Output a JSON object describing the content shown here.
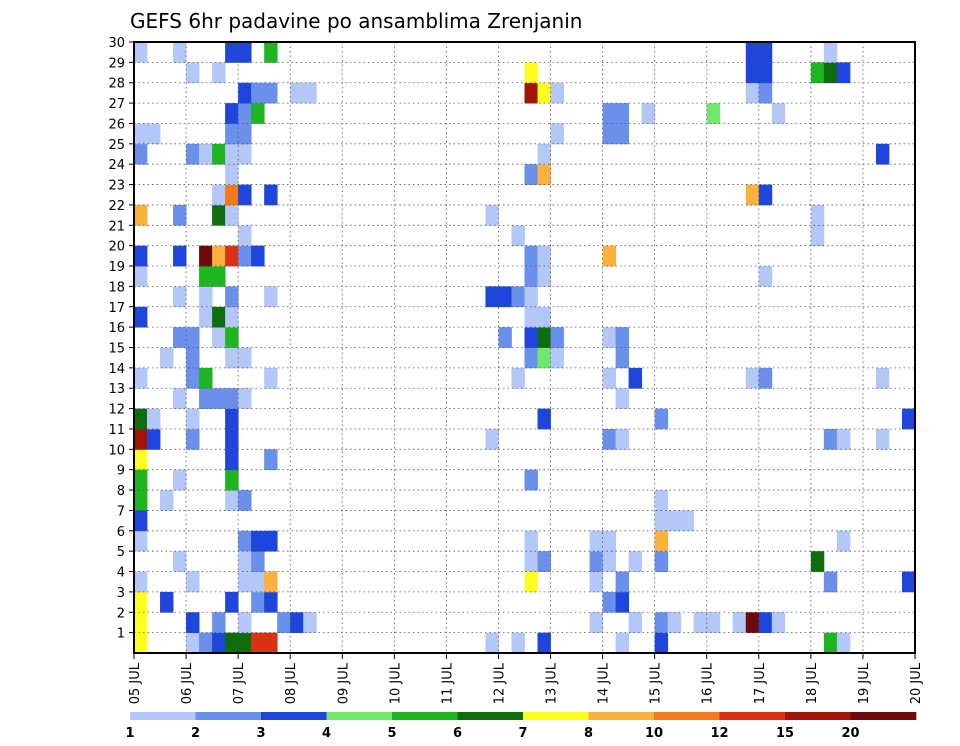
{
  "chart_data": {
    "type": "heatmap",
    "title": "GEFS 6hr padavine po ansamblima Zrenjanin",
    "x_ticks": [
      "05 JUL",
      "06 JUL",
      "07 JUL",
      "08 JUL",
      "09 JUL",
      "10 JUL",
      "11 JUL",
      "12 JUL",
      "13 JUL",
      "14 JUL",
      "15 JUL",
      "16 JUL",
      "17 JUL",
      "18 JUL",
      "19 JUL",
      "20 JUL"
    ],
    "y_ticks": [
      1,
      2,
      3,
      4,
      5,
      6,
      7,
      8,
      9,
      10,
      11,
      12,
      13,
      14,
      15,
      16,
      17,
      18,
      19,
      20,
      21,
      22,
      23,
      24,
      25,
      26,
      27,
      28,
      29,
      30
    ],
    "x_range": [
      0,
      60
    ],
    "y_range": [
      0,
      30
    ],
    "grid": true,
    "colorbar": {
      "labels": [
        "1",
        "2",
        "3",
        "4",
        "5",
        "6",
        "7",
        "8",
        "10",
        "12",
        "15",
        "20"
      ],
      "colors": [
        "#b4c8f8",
        "#6b90eb",
        "#1e46dc",
        "#6fe86b",
        "#1fb51f",
        "#0e6e0e",
        "#ffff1e",
        "#fab23c",
        "#f57a1e",
        "#dc3214",
        "#a0140a",
        "#6e0a0a"
      ]
    },
    "cells": [
      [
        0,
        0,
        6
      ],
      [
        0,
        1,
        6
      ],
      [
        0,
        2,
        6
      ],
      [
        0,
        7,
        4
      ],
      [
        0,
        9,
        6
      ],
      [
        0,
        10,
        10
      ],
      [
        0,
        11,
        5
      ],
      [
        0,
        13,
        0
      ],
      [
        0,
        8,
        4
      ],
      [
        0,
        3,
        0
      ],
      [
        0,
        5,
        0
      ],
      [
        0,
        6,
        2
      ],
      [
        0,
        16,
        2
      ],
      [
        0,
        18,
        0
      ],
      [
        0,
        19,
        2
      ],
      [
        0,
        21,
        7
      ],
      [
        0,
        24,
        1
      ],
      [
        0,
        25,
        0
      ],
      [
        0,
        29,
        0
      ],
      [
        1,
        25,
        0
      ],
      [
        1,
        10,
        2
      ],
      [
        1,
        11,
        0
      ],
      [
        2,
        2,
        2
      ],
      [
        2,
        7,
        0
      ],
      [
        2,
        14,
        0
      ],
      [
        3,
        15,
        1
      ],
      [
        3,
        12,
        0
      ],
      [
        3,
        8,
        0
      ],
      [
        3,
        29,
        0
      ],
      [
        3,
        17,
        0
      ],
      [
        3,
        19,
        2
      ],
      [
        3,
        21,
        1
      ],
      [
        3,
        4,
        0
      ],
      [
        4,
        0,
        0
      ],
      [
        4,
        1,
        2
      ],
      [
        4,
        3,
        0
      ],
      [
        4,
        13,
        1
      ],
      [
        4,
        14,
        1
      ],
      [
        4,
        15,
        1
      ],
      [
        4,
        10,
        1
      ],
      [
        4,
        24,
        1
      ],
      [
        4,
        11,
        0
      ],
      [
        4,
        28,
        0
      ],
      [
        5,
        0,
        1
      ],
      [
        5,
        12,
        1
      ],
      [
        5,
        13,
        4
      ],
      [
        5,
        16,
        0
      ],
      [
        5,
        17,
        0
      ],
      [
        5,
        18,
        4
      ],
      [
        5,
        19,
        11
      ],
      [
        5,
        24,
        0
      ],
      [
        5,
        0,
        1
      ],
      [
        6,
        0,
        2
      ],
      [
        6,
        1,
        1
      ],
      [
        6,
        12,
        1
      ],
      [
        6,
        15,
        0
      ],
      [
        6,
        16,
        5
      ],
      [
        6,
        18,
        4
      ],
      [
        6,
        19,
        7
      ],
      [
        6,
        21,
        5
      ],
      [
        6,
        24,
        4
      ],
      [
        6,
        28,
        0
      ],
      [
        6,
        22,
        0
      ],
      [
        7,
        0,
        5
      ],
      [
        7,
        2,
        2
      ],
      [
        7,
        7,
        0
      ],
      [
        7,
        8,
        4
      ],
      [
        7,
        9,
        2
      ],
      [
        7,
        10,
        2
      ],
      [
        7,
        11,
        2
      ],
      [
        7,
        12,
        1
      ],
      [
        7,
        14,
        0
      ],
      [
        7,
        15,
        4
      ],
      [
        7,
        16,
        0
      ],
      [
        7,
        17,
        1
      ],
      [
        7,
        19,
        9
      ],
      [
        7,
        21,
        0
      ],
      [
        7,
        22,
        8
      ],
      [
        7,
        23,
        0
      ],
      [
        7,
        24,
        0
      ],
      [
        7,
        25,
        1
      ],
      [
        7,
        26,
        2
      ],
      [
        7,
        29,
        2
      ],
      [
        8,
        0,
        5
      ],
      [
        8,
        1,
        0
      ],
      [
        8,
        3,
        0
      ],
      [
        8,
        5,
        1
      ],
      [
        8,
        4,
        0
      ],
      [
        8,
        7,
        1
      ],
      [
        8,
        12,
        0
      ],
      [
        8,
        14,
        0
      ],
      [
        8,
        19,
        1
      ],
      [
        8,
        20,
        0
      ],
      [
        8,
        22,
        2
      ],
      [
        8,
        24,
        0
      ],
      [
        8,
        25,
        1
      ],
      [
        8,
        26,
        1
      ],
      [
        8,
        27,
        2
      ],
      [
        8,
        29,
        2
      ],
      [
        9,
        0,
        9
      ],
      [
        9,
        2,
        1
      ],
      [
        9,
        3,
        0
      ],
      [
        9,
        4,
        1
      ],
      [
        9,
        5,
        2
      ],
      [
        9,
        19,
        2
      ],
      [
        9,
        26,
        4
      ],
      [
        9,
        27,
        1
      ],
      [
        10,
        0,
        9
      ],
      [
        10,
        2,
        2
      ],
      [
        10,
        3,
        7
      ],
      [
        10,
        5,
        2
      ],
      [
        10,
        9,
        1
      ],
      [
        10,
        13,
        0
      ],
      [
        10,
        17,
        0
      ],
      [
        10,
        22,
        2
      ],
      [
        10,
        27,
        1
      ],
      [
        10,
        29,
        4
      ],
      [
        11,
        1,
        1
      ],
      [
        12,
        1,
        2
      ],
      [
        12,
        27,
        0
      ],
      [
        13,
        1,
        0
      ],
      [
        13,
        27,
        0
      ],
      [
        27,
        0,
        0
      ],
      [
        27,
        17,
        2
      ],
      [
        27,
        10,
        0
      ],
      [
        27,
        21,
        0
      ],
      [
        28,
        17,
        2
      ],
      [
        28,
        15,
        1
      ],
      [
        29,
        17,
        1
      ],
      [
        29,
        0,
        0
      ],
      [
        29,
        13,
        0
      ],
      [
        29,
        20,
        0
      ],
      [
        30,
        14,
        1
      ],
      [
        30,
        23,
        1
      ],
      [
        30,
        8,
        1
      ],
      [
        30,
        3,
        6
      ],
      [
        30,
        5,
        0
      ],
      [
        30,
        4,
        0
      ],
      [
        30,
        15,
        2
      ],
      [
        30,
        17,
        0
      ],
      [
        30,
        16,
        0
      ],
      [
        30,
        18,
        1
      ],
      [
        30,
        19,
        1
      ],
      [
        30,
        27,
        10
      ],
      [
        30,
        28,
        6
      ],
      [
        31,
        11,
        2
      ],
      [
        31,
        4,
        1
      ],
      [
        31,
        14,
        3
      ],
      [
        31,
        15,
        5
      ],
      [
        31,
        16,
        0
      ],
      [
        31,
        18,
        0
      ],
      [
        31,
        19,
        0
      ],
      [
        31,
        23,
        7
      ],
      [
        31,
        24,
        0
      ],
      [
        31,
        27,
        6
      ],
      [
        31,
        0,
        2
      ],
      [
        32,
        14,
        0
      ],
      [
        32,
        15,
        1
      ],
      [
        32,
        27,
        0
      ],
      [
        32,
        25,
        0
      ],
      [
        35,
        1,
        0
      ],
      [
        35,
        3,
        0
      ],
      [
        35,
        4,
        1
      ],
      [
        35,
        5,
        0
      ],
      [
        36,
        2,
        1
      ],
      [
        36,
        4,
        0
      ],
      [
        36,
        5,
        0
      ],
      [
        36,
        10,
        1
      ],
      [
        36,
        13,
        0
      ],
      [
        36,
        15,
        0
      ],
      [
        36,
        19,
        7
      ],
      [
        36,
        25,
        1
      ],
      [
        36,
        26,
        1
      ],
      [
        37,
        2,
        2
      ],
      [
        37,
        3,
        1
      ],
      [
        37,
        14,
        1
      ],
      [
        37,
        10,
        0
      ],
      [
        37,
        12,
        0
      ],
      [
        37,
        15,
        1
      ],
      [
        37,
        25,
        1
      ],
      [
        37,
        26,
        1
      ],
      [
        37,
        0,
        0
      ],
      [
        38,
        1,
        0
      ],
      [
        38,
        4,
        0
      ],
      [
        38,
        13,
        2
      ],
      [
        39,
        26,
        0
      ],
      [
        40,
        0,
        2
      ],
      [
        40,
        1,
        1
      ],
      [
        40,
        4,
        0
      ],
      [
        40,
        6,
        0
      ],
      [
        40,
        11,
        1
      ],
      [
        40,
        4,
        1
      ],
      [
        40,
        7,
        0
      ],
      [
        40,
        5,
        7
      ],
      [
        41,
        1,
        0
      ],
      [
        41,
        6,
        0
      ],
      [
        42,
        6,
        0
      ],
      [
        43,
        1,
        0
      ],
      [
        44,
        1,
        0
      ],
      [
        44,
        26,
        3
      ],
      [
        46,
        1,
        0
      ],
      [
        47,
        1,
        11
      ],
      [
        47,
        13,
        0
      ],
      [
        47,
        22,
        7
      ],
      [
        47,
        27,
        0
      ],
      [
        47,
        28,
        2
      ],
      [
        47,
        29,
        2
      ],
      [
        48,
        1,
        2
      ],
      [
        48,
        13,
        1
      ],
      [
        48,
        18,
        0
      ],
      [
        48,
        22,
        2
      ],
      [
        48,
        27,
        1
      ],
      [
        48,
        28,
        2
      ],
      [
        48,
        29,
        2
      ],
      [
        49,
        1,
        0
      ],
      [
        49,
        26,
        0
      ],
      [
        52,
        4,
        5
      ],
      [
        52,
        20,
        0
      ],
      [
        52,
        21,
        0
      ],
      [
        52,
        28,
        4
      ],
      [
        53,
        0,
        4
      ],
      [
        53,
        10,
        1
      ],
      [
        53,
        3,
        1
      ],
      [
        53,
        28,
        5
      ],
      [
        53,
        29,
        0
      ],
      [
        54,
        0,
        0
      ],
      [
        54,
        5,
        0
      ],
      [
        54,
        10,
        0
      ],
      [
        54,
        28,
        2
      ],
      [
        57,
        10,
        0
      ],
      [
        57,
        13,
        0
      ],
      [
        57,
        24,
        2
      ],
      [
        59,
        11,
        2
      ],
      [
        59,
        3,
        2
      ]
    ]
  }
}
